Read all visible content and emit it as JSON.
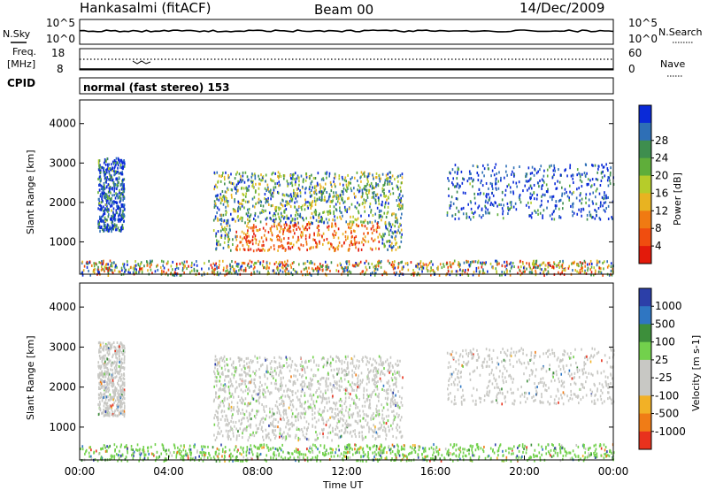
{
  "header": {
    "station": "Hankasalmi (fitACF)",
    "beam": "Beam 00",
    "date": "14/Dec/2009"
  },
  "nsky_panel": {
    "left_label": "N.Sky",
    "left_ticks": [
      "10^5",
      "10^0"
    ],
    "right_ticks": [
      "10^5",
      "10^0"
    ],
    "right_label": "N.Search"
  },
  "freq_panel": {
    "left_label_top": "Freq.",
    "left_label_unit": "[MHz]",
    "left_ticks": [
      "18",
      "8"
    ],
    "right_ticks": [
      "60",
      "0"
    ],
    "right_label": "Nave"
  },
  "cpid_panel": {
    "label": "CPID",
    "text": "normal (fast stereo) 153"
  },
  "chart_data": [
    {
      "type": "heatmap",
      "quantity": "Power",
      "ylabel": "Slant Range [km]",
      "yticks": [
        "1000",
        "2000",
        "3000",
        "4000"
      ],
      "ylim": [
        180,
        4600
      ],
      "xlim_hours": [
        0,
        24
      ],
      "colorbar": {
        "label": "Power [dB]",
        "ticks": [
          "4",
          "8",
          "12",
          "16",
          "20",
          "24",
          "28"
        ],
        "colors": [
          "#0a2ad8",
          "#2e6fb6",
          "#3e8e4e",
          "#5fae3a",
          "#b6cc2a",
          "#e8b321",
          "#f07a12",
          "#f04d0f",
          "#e31a0b"
        ]
      },
      "regions": [
        {
          "t": [
            0.8,
            2.0
          ],
          "r": [
            1300,
            3150
          ],
          "level": "low"
        },
        {
          "t": [
            6.0,
            14.5
          ],
          "r": [
            800,
            2800
          ],
          "level": "mixed_high_core"
        },
        {
          "t": [
            16.5,
            24.0
          ],
          "r": [
            1600,
            3000
          ],
          "level": "low"
        },
        {
          "t": [
            0.0,
            24.0
          ],
          "r": [
            180,
            550
          ],
          "level": "ground"
        }
      ]
    },
    {
      "type": "heatmap",
      "quantity": "Velocity",
      "ylabel": "Slant Range [km]",
      "yticks": [
        "1000",
        "2000",
        "3000",
        "4000"
      ],
      "ylim": [
        180,
        4600
      ],
      "xlim_hours": [
        0,
        24
      ],
      "xlabel": "Time UT",
      "xticks": [
        "00:00",
        "04:00",
        "08:00",
        "12:00",
        "16:00",
        "20:00",
        "00:00"
      ],
      "colorbar": {
        "label": "Velocity [m s-1]",
        "ticks": [
          "1000",
          "500",
          "100",
          "25",
          "-25",
          "-100",
          "-500",
          "-1000"
        ],
        "colors": [
          "#2c3fa8",
          "#2f76c2",
          "#3d8f3b",
          "#72d14c",
          "#c8c8c4",
          "#c8c8c4",
          "#f2b126",
          "#f07c16",
          "#e8321d"
        ]
      },
      "regions": [
        {
          "t": [
            0.8,
            2.0
          ],
          "r": [
            1300,
            3150
          ],
          "level": "grey"
        },
        {
          "t": [
            6.0,
            14.5
          ],
          "r": [
            700,
            2800
          ],
          "level": "grey_with_green"
        },
        {
          "t": [
            16.5,
            24.0
          ],
          "r": [
            1600,
            3000
          ],
          "level": "grey"
        },
        {
          "t": [
            0.0,
            24.0
          ],
          "r": [
            180,
            600
          ],
          "level": "green_ground"
        }
      ]
    }
  ]
}
